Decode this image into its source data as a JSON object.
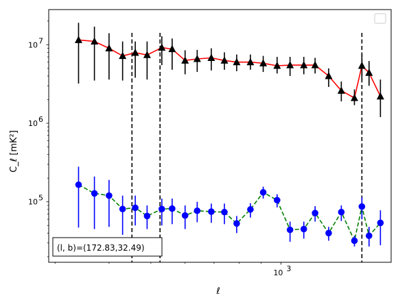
{
  "chart_data": {
    "type": "scatter",
    "title": "",
    "xlabel": "ℓ",
    "ylabel": "C_ℓ  [mK²]",
    "xscale": "log",
    "yscale": "log",
    "xlim": [
      290,
      1800
    ],
    "ylim": [
      17000,
      28000000
    ],
    "grid": false,
    "legend_placement": "top-right",
    "x_major_ticks": [
      1000
    ],
    "x_major_tick_labels": [
      "10",
      "3"
    ],
    "y_major_ticks": [
      100000,
      1000000,
      10000000
    ],
    "y_major_tick_labels": [
      [
        "10",
        "5"
      ],
      [
        "10",
        "6"
      ],
      [
        "10",
        "7"
      ]
    ],
    "vlines": [
      452,
      525,
      1540
    ],
    "annotation": "(l, b)=(172.83,32.49)",
    "series": [
      {
        "marker": "triangle",
        "color": "#000000",
        "line_color": "#ff0000",
        "line_style": "solid",
        "x": [
          340,
          370,
          400,
          430,
          460,
          490,
          530,
          560,
          600,
          640,
          690,
          740,
          790,
          850,
          910,
          980,
          1050,
          1130,
          1200,
          1290,
          1380,
          1480,
          1540,
          1600,
          1700
        ],
        "y": [
          11500000,
          11000000,
          9000000,
          7200000,
          7900000,
          7400000,
          9200000,
          8800000,
          6300000,
          6600000,
          6800000,
          6300000,
          6000000,
          6000000,
          5800000,
          5400000,
          5500000,
          5500000,
          5500000,
          4000000,
          2600000,
          2100000,
          5400000,
          4400000,
          2200000
        ],
        "y_lower": [
          3200000,
          3500000,
          3600000,
          3500000,
          3800000,
          3600000,
          5500000,
          4800000,
          4200000,
          4500000,
          4700000,
          4800000,
          4600000,
          4800000,
          4500000,
          4300000,
          4000000,
          4200000,
          4300000,
          2900000,
          1900000,
          1700000,
          3600000,
          3000000,
          1200000
        ],
        "y_upper": [
          19000000,
          17000000,
          14000000,
          11000000,
          11000000,
          11000000,
          12800000,
          12000000,
          8500000,
          8600000,
          9000000,
          8000000,
          7500000,
          7500000,
          7200000,
          7000000,
          7000000,
          7000000,
          6800000,
          5000000,
          3400000,
          2700000,
          7500000,
          6200000,
          3600000
        ]
      },
      {
        "marker": "circle",
        "color": "#0000ff",
        "line_color": "#008000",
        "line_style": "dashed",
        "x": [
          340,
          370,
          400,
          430,
          460,
          490,
          530,
          560,
          600,
          640,
          690,
          740,
          790,
          850,
          910,
          980,
          1050,
          1130,
          1200,
          1290,
          1380,
          1480,
          1540,
          1600,
          1700
        ],
        "y": [
          165000,
          128000,
          120000,
          81000,
          84000,
          66000,
          81000,
          82000,
          67000,
          77000,
          75000,
          74000,
          53000,
          80000,
          132000,
          105000,
          44000,
          45000,
          72000,
          40000,
          74000,
          32000,
          87000,
          37000,
          54000
        ],
        "y_lower": [
          47000,
          45000,
          48000,
          38000,
          50000,
          45000,
          50000,
          52000,
          45000,
          55000,
          54000,
          52000,
          40000,
          63000,
          110000,
          85000,
          31000,
          34000,
          56000,
          32000,
          57000,
          27000,
          60000,
          27000,
          28000
        ],
        "y_upper": [
          280000,
          210000,
          190000,
          120000,
          120000,
          90000,
          110000,
          110000,
          90000,
          100000,
          95000,
          95000,
          66000,
          96000,
          156000,
          125000,
          56000,
          56000,
          88000,
          48000,
          90000,
          37000,
          115000,
          48000,
          78000
        ]
      }
    ]
  }
}
